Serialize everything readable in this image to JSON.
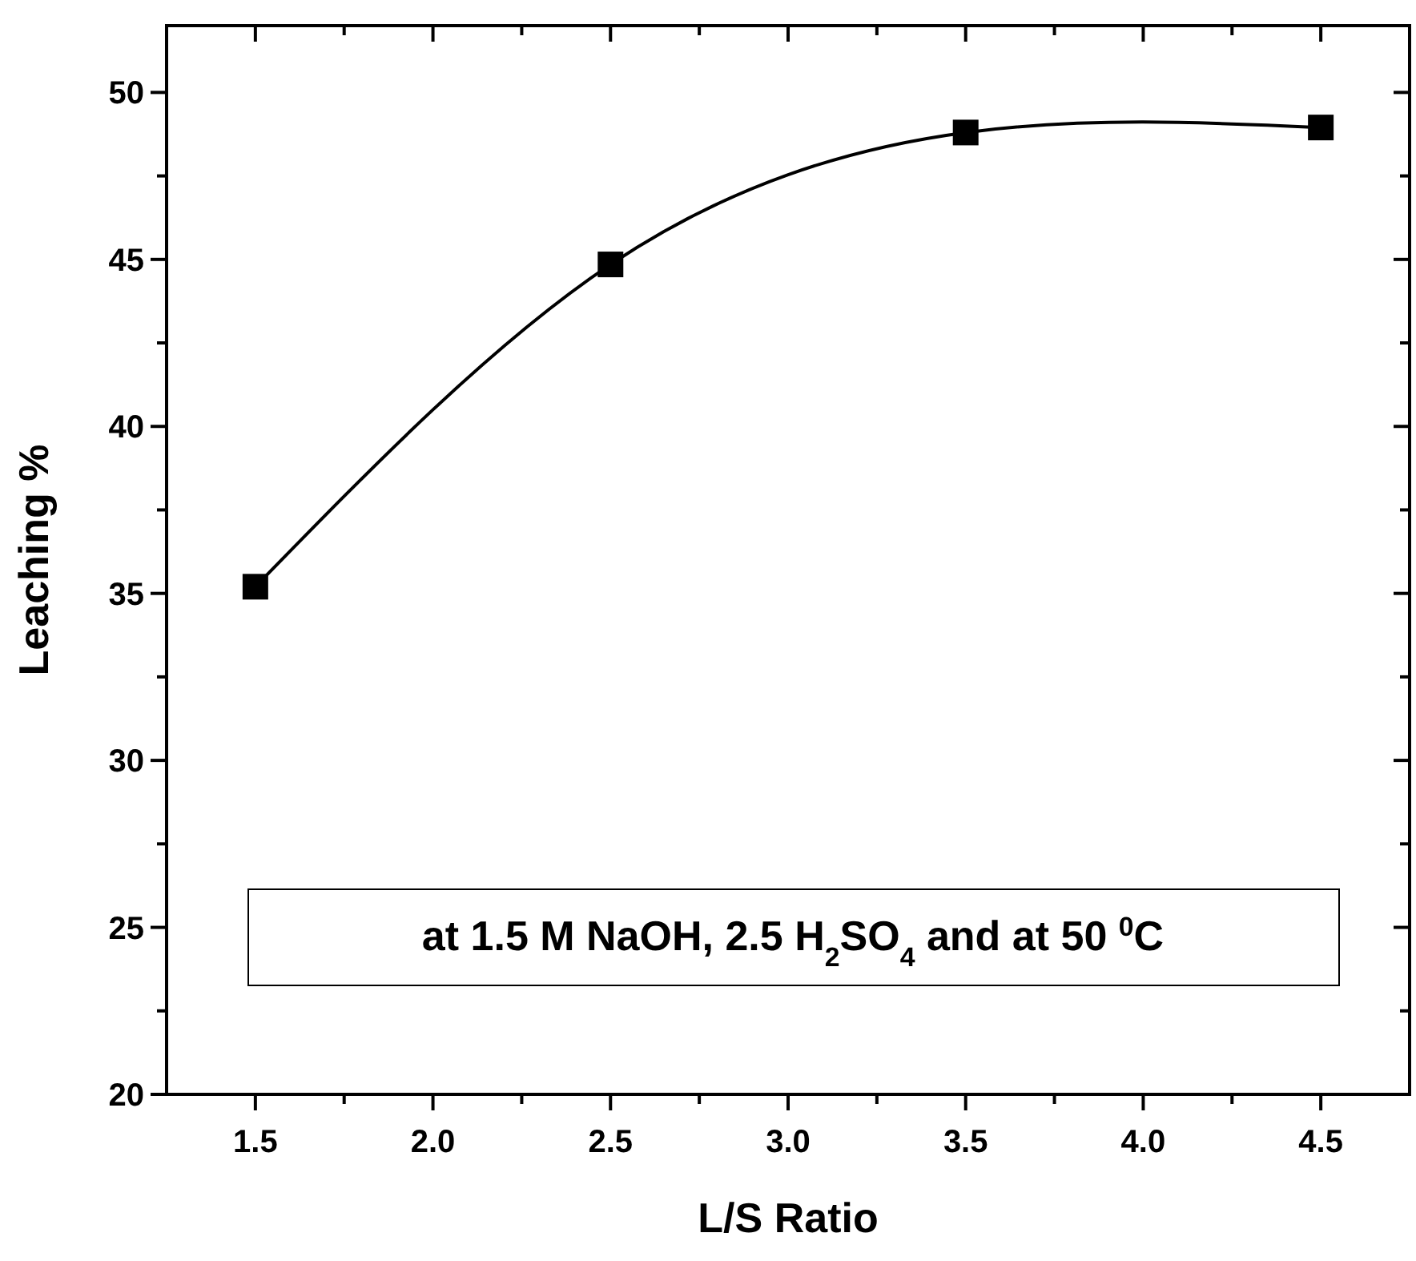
{
  "chart_data": {
    "type": "line",
    "xlabel": "L/S Ratio",
    "ylabel": "Leaching %",
    "x": [
      1.5,
      2.5,
      3.5,
      4.5
    ],
    "series": [
      {
        "color": "#000000",
        "values": [
          35.2,
          44.85,
          48.8,
          48.95
        ]
      }
    ],
    "marker": "square",
    "line_style": "solid",
    "grid": false,
    "xlim": [
      1.25,
      4.75
    ],
    "ylim": [
      20,
      52
    ],
    "xticks": [
      {
        "value": 1.5,
        "label": "1.5"
      },
      {
        "value": 1.75,
        "label": null
      },
      {
        "value": 2,
        "label": "2.0"
      },
      {
        "value": 2.25,
        "label": null
      },
      {
        "value": 2.5,
        "label": "2.5"
      },
      {
        "value": 2.75,
        "label": null
      },
      {
        "value": 3,
        "label": "3.0"
      },
      {
        "value": 3.25,
        "label": null
      },
      {
        "value": 3.5,
        "label": "3.5"
      },
      {
        "value": 3.75,
        "label": null
      },
      {
        "value": 4,
        "label": "4.0"
      },
      {
        "value": 4.25,
        "label": null
      },
      {
        "value": 4.5,
        "label": "4.5"
      }
    ],
    "yticks": [
      20,
      {
        "value": 22.5,
        "label": null
      },
      25,
      {
        "value": 27.5,
        "label": null
      },
      30,
      {
        "value": 32.5,
        "label": null
      },
      35,
      {
        "value": 37.5,
        "label": null
      },
      40,
      {
        "value": 42.5,
        "label": null
      },
      45,
      {
        "value": 47.5,
        "label": null
      },
      50
    ],
    "annotations": [
      "at 1.5 M NaOH, 2.5 H$_{2}$SO$_{4}$ and at 50 $^{0}$C"
    ]
  }
}
